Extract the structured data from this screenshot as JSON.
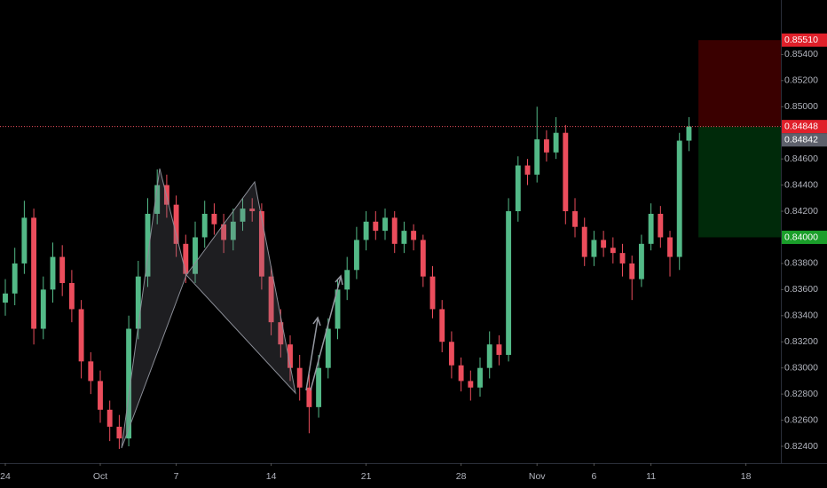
{
  "chart_data": {
    "type": "candlestick",
    "x": [
      0,
      1,
      2,
      3,
      4,
      5,
      6,
      7,
      8,
      9,
      10,
      11,
      12,
      13,
      14,
      15,
      16,
      17,
      18,
      19,
      20,
      21,
      22,
      23,
      24,
      25,
      26,
      27,
      28,
      29,
      30,
      31,
      32,
      33,
      34,
      35,
      36,
      37,
      38,
      39,
      40,
      41,
      42,
      43,
      44,
      45,
      46,
      47,
      48,
      49,
      50,
      51,
      52,
      53,
      54,
      55,
      56,
      57,
      58,
      59,
      60,
      61,
      62,
      63,
      64,
      65,
      66,
      67,
      68,
      69,
      70,
      71,
      72
    ],
    "open": [
      0.835,
      0.8357,
      0.838,
      0.8415,
      0.833,
      0.836,
      0.8385,
      0.8365,
      0.8345,
      0.8305,
      0.829,
      0.8268,
      0.8255,
      0.8246,
      0.833,
      0.837,
      0.8418,
      0.844,
      0.8425,
      0.8395,
      0.8372,
      0.84,
      0.8418,
      0.841,
      0.8398,
      0.8412,
      0.8422,
      0.842,
      0.837,
      0.8335,
      0.8318,
      0.83,
      0.8285,
      0.827,
      0.83,
      0.833,
      0.836,
      0.8375,
      0.8398,
      0.8412,
      0.8405,
      0.8415,
      0.8395,
      0.8405,
      0.8398,
      0.837,
      0.8345,
      0.832,
      0.8302,
      0.829,
      0.8285,
      0.83,
      0.8318,
      0.831,
      0.842,
      0.8455,
      0.8448,
      0.8475,
      0.8465,
      0.848,
      0.842,
      0.8408,
      0.8385,
      0.8398,
      0.8392,
      0.8388,
      0.838,
      0.8368,
      0.8395,
      0.8418,
      0.84,
      0.8385,
      0.8474
    ],
    "high": [
      0.8368,
      0.8392,
      0.8428,
      0.8422,
      0.837,
      0.8396,
      0.8394,
      0.8375,
      0.8352,
      0.8312,
      0.8298,
      0.8275,
      0.8264,
      0.834,
      0.8382,
      0.843,
      0.8452,
      0.8448,
      0.8432,
      0.8402,
      0.8412,
      0.8428,
      0.8426,
      0.8418,
      0.8422,
      0.843,
      0.843,
      0.8426,
      0.8378,
      0.8345,
      0.8325,
      0.831,
      0.8295,
      0.831,
      0.8338,
      0.8368,
      0.8385,
      0.8408,
      0.842,
      0.842,
      0.8422,
      0.842,
      0.8412,
      0.841,
      0.8402,
      0.8378,
      0.8352,
      0.8328,
      0.8308,
      0.8298,
      0.8308,
      0.8328,
      0.8325,
      0.843,
      0.8462,
      0.846,
      0.85,
      0.8482,
      0.8492,
      0.8486,
      0.843,
      0.8415,
      0.8405,
      0.8405,
      0.84,
      0.8395,
      0.8386,
      0.8402,
      0.8426,
      0.8424,
      0.8405,
      0.848,
      0.8492
    ],
    "low": [
      0.834,
      0.8348,
      0.8372,
      0.8318,
      0.8322,
      0.835,
      0.8355,
      0.8335,
      0.8292,
      0.828,
      0.8258,
      0.8244,
      0.8238,
      0.824,
      0.8322,
      0.8362,
      0.841,
      0.8415,
      0.8385,
      0.8365,
      0.8365,
      0.8392,
      0.8402,
      0.8388,
      0.839,
      0.8405,
      0.8412,
      0.836,
      0.8325,
      0.8308,
      0.829,
      0.8275,
      0.825,
      0.8262,
      0.8292,
      0.8322,
      0.8352,
      0.8368,
      0.839,
      0.8398,
      0.8398,
      0.8388,
      0.8388,
      0.839,
      0.8362,
      0.8338,
      0.8312,
      0.8292,
      0.8282,
      0.8275,
      0.8278,
      0.8292,
      0.8302,
      0.8305,
      0.8412,
      0.844,
      0.8442,
      0.8458,
      0.846,
      0.841,
      0.84,
      0.8378,
      0.8378,
      0.8385,
      0.838,
      0.837,
      0.8352,
      0.8362,
      0.839,
      0.8392,
      0.837,
      0.8375,
      0.8466
    ],
    "close": [
      0.8357,
      0.838,
      0.8415,
      0.833,
      0.836,
      0.8385,
      0.8365,
      0.8345,
      0.8305,
      0.829,
      0.8268,
      0.8255,
      0.8246,
      0.833,
      0.837,
      0.8418,
      0.844,
      0.8425,
      0.8395,
      0.8372,
      0.84,
      0.8418,
      0.841,
      0.8398,
      0.8412,
      0.8422,
      0.842,
      0.837,
      0.8335,
      0.8318,
      0.83,
      0.8285,
      0.827,
      0.83,
      0.833,
      0.836,
      0.8375,
      0.8398,
      0.8412,
      0.8405,
      0.8415,
      0.8395,
      0.8405,
      0.8398,
      0.837,
      0.8345,
      0.832,
      0.8302,
      0.829,
      0.8285,
      0.83,
      0.8318,
      0.831,
      0.842,
      0.8455,
      0.8448,
      0.8475,
      0.8465,
      0.848,
      0.842,
      0.8408,
      0.8385,
      0.8398,
      0.8392,
      0.8388,
      0.838,
      0.8368,
      0.8395,
      0.8418,
      0.84,
      0.8385,
      0.8474,
      0.84848
    ],
    "up_color": "#53b987",
    "down_color": "#eb4d5c",
    "xlim": [
      -0.56,
      81.68
    ],
    "xticks": [
      {
        "value": 0,
        "label": "24"
      },
      {
        "value": 10,
        "label": "Oct"
      },
      {
        "value": 18,
        "label": "7"
      },
      {
        "value": 28,
        "label": "14"
      },
      {
        "value": 38,
        "label": "21"
      },
      {
        "value": 48,
        "label": "28"
      },
      {
        "value": 56,
        "label": "Nov"
      },
      {
        "value": 62,
        "label": "6"
      },
      {
        "value": 68,
        "label": "11"
      },
      {
        "value": 78,
        "label": "18"
      }
    ],
    "ylim": [
      0.82271,
      0.85817
    ],
    "yticks": [
      {
        "value": 0.854,
        "label": "0.85400"
      },
      {
        "value": 0.852,
        "label": "0.85200"
      },
      {
        "value": 0.85,
        "label": "0.85000"
      },
      {
        "value": 0.846,
        "label": "0.84600"
      },
      {
        "value": 0.844,
        "label": "0.84400"
      },
      {
        "value": 0.842,
        "label": "0.84200"
      },
      {
        "value": 0.838,
        "label": "0.83800"
      },
      {
        "value": 0.836,
        "label": "0.83600"
      },
      {
        "value": 0.834,
        "label": "0.83400"
      },
      {
        "value": 0.832,
        "label": "0.83200"
      },
      {
        "value": 0.83,
        "label": "0.83000"
      },
      {
        "value": 0.828,
        "label": "0.82800"
      },
      {
        "value": 0.826,
        "label": "0.82600"
      },
      {
        "value": 0.824,
        "label": "0.82400"
      }
    ],
    "last_price": {
      "value": 0.84848,
      "label": "0.84848"
    },
    "bid_price": {
      "value": 0.84842,
      "label": "0.84842"
    },
    "position": {
      "start": 73,
      "entry": 0.84848,
      "stop": {
        "value": 0.8551,
        "label": "0.85510"
      },
      "target": {
        "value": 0.84,
        "label": "0.84000"
      }
    }
  }
}
